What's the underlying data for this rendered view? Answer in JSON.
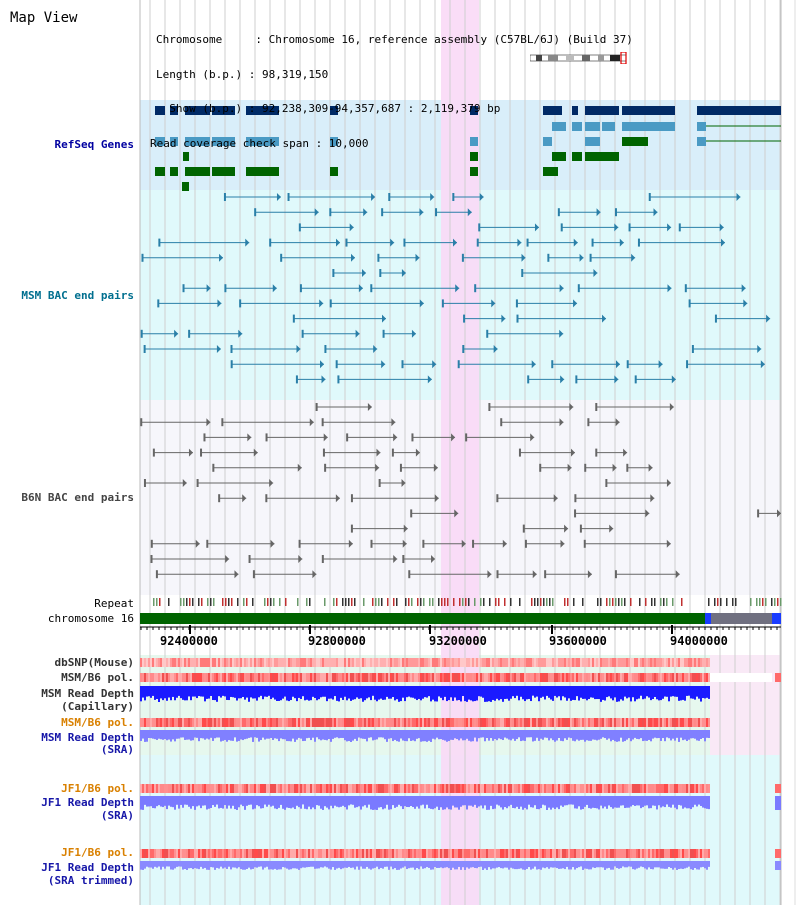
{
  "header": {
    "title": "Map View",
    "chromosome_line": "Chromosome     : Chromosome 16, reference assembly (C57BL/6J) (Build 37)",
    "length_line": "Length (b.p.) : 98,319,150",
    "show_line": "  Show (b.p.) : 92,238,309-94,357,687 : 2,119,379 bp",
    "coverage_line": "Read coverage check span : 10,000"
  },
  "tracks": {
    "refseq": "RefSeq Genes",
    "msm_bac": "MSM BAC end pairs",
    "b6n_bac": "B6N BAC end pairs",
    "repeat": "Repeat",
    "chromosome": "chromosome 16",
    "dbsnp": "dbSNP(Mouse)",
    "msm_b6_pol_1": "MSM/B6 pol.",
    "msm_read_depth_cap_1": "MSM Read Depth",
    "msm_read_depth_cap_2": "(Capillary)",
    "msm_b6_pol_2": "MSM/B6 pol.",
    "msm_read_depth_sra_1": "MSM Read Depth",
    "msm_read_depth_sra_2": "(SRA)",
    "jf1_b6_pol_1": "JF1/B6 pol.",
    "jf1_read_depth_sra_1": "JF1 Read Depth",
    "jf1_read_depth_sra_2": "(SRA)",
    "jf1_b6_pol_2": "JF1/B6 pol.",
    "jf1_read_depth_trim_1": "JF1 Read Depth",
    "jf1_read_depth_trim_2": "(SRA trimmed)"
  },
  "axis": {
    "ticks": [
      "92400000",
      "92800000",
      "93200000",
      "93600000",
      "94000000"
    ]
  },
  "colors": {
    "gene_dark": "#002a66",
    "gene_mid": "#4a9ac4",
    "gene_green": "#006400",
    "msm_bac": "#2a7fa8",
    "b6n_bac": "#666666",
    "highlight": "#f9d9f6",
    "chrom_bar": "#006400"
  }
}
